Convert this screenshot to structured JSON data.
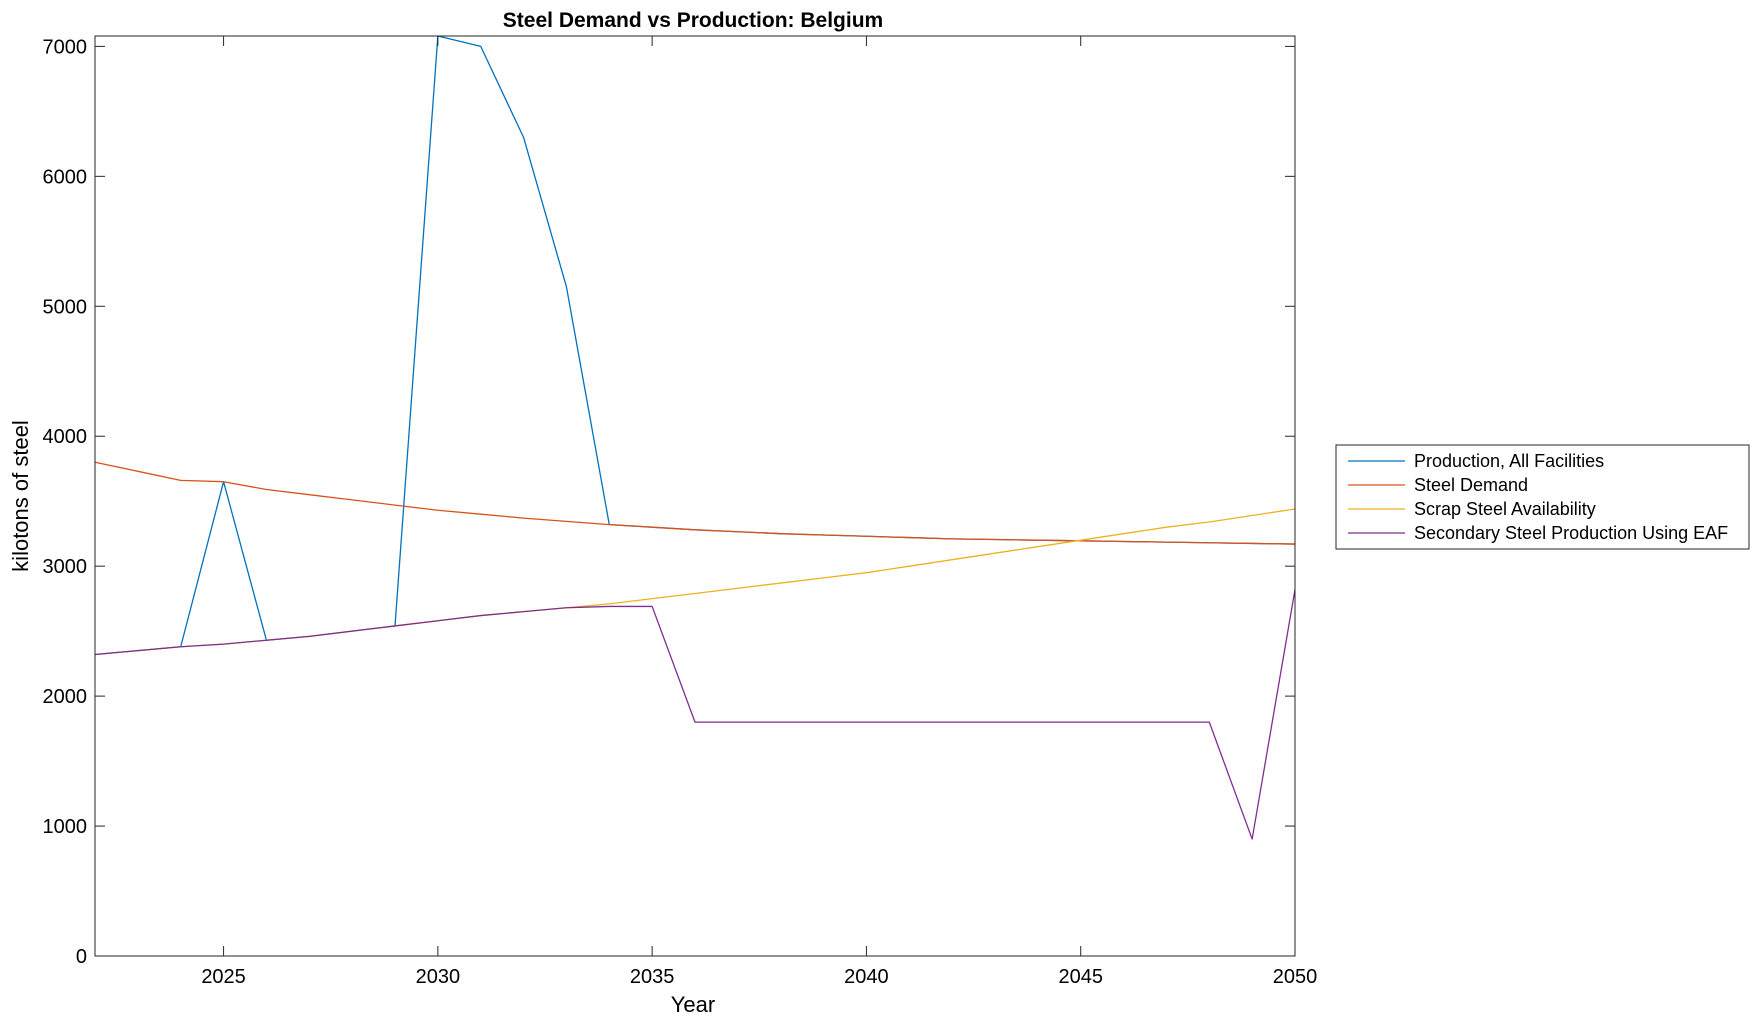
{
  "chart_data": {
    "type": "line",
    "title": "Steel Demand vs Production: Belgium",
    "xlabel": "Year",
    "ylabel": "kilotons of steel",
    "xlim": [
      2022,
      2050
    ],
    "ylim": [
      0,
      7080
    ],
    "xticks": [
      2025,
      2030,
      2035,
      2040,
      2045,
      2050
    ],
    "yticks": [
      0,
      1000,
      2000,
      3000,
      4000,
      5000,
      6000,
      7000
    ],
    "grid": false,
    "legend_position": "outside-right",
    "x": [
      2022,
      2023,
      2024,
      2025,
      2026,
      2027,
      2028,
      2029,
      2030,
      2031,
      2032,
      2033,
      2034,
      2035,
      2036,
      2037,
      2038,
      2039,
      2040,
      2041,
      2042,
      2043,
      2044,
      2045,
      2046,
      2047,
      2048,
      2049,
      2050
    ],
    "series": [
      {
        "name": "Production, All Facilities",
        "color": "#0072BD",
        "values": [
          2320,
          2350,
          2380,
          3650,
          2430,
          2460,
          2500,
          2540,
          7080,
          7000,
          6300,
          5150,
          3320,
          3300,
          3280,
          3265,
          3250,
          3240,
          3230,
          3220,
          3210,
          3205,
          3200,
          3195,
          3190,
          3185,
          3180,
          3175,
          3170
        ]
      },
      {
        "name": "Steel Demand",
        "color": "#D95319",
        "values": [
          3800,
          3730,
          3660,
          3650,
          3590,
          3550,
          3510,
          3470,
          3430,
          3400,
          3370,
          3345,
          3320,
          3300,
          3280,
          3265,
          3250,
          3240,
          3230,
          3220,
          3210,
          3205,
          3200,
          3195,
          3190,
          3185,
          3180,
          3175,
          3170
        ]
      },
      {
        "name": "Scrap Steel Availability",
        "color": "#EDB120",
        "values": [
          2320,
          2350,
          2380,
          2400,
          2430,
          2460,
          2500,
          2540,
          2580,
          2620,
          2650,
          2680,
          2710,
          2750,
          2790,
          2830,
          2870,
          2910,
          2950,
          3000,
          3050,
          3100,
          3150,
          3200,
          3250,
          3300,
          3340,
          3390,
          3440
        ]
      },
      {
        "name": "Secondary Steel Production Using EAF",
        "color": "#7E2F8E",
        "values": [
          2320,
          2350,
          2380,
          2400,
          2430,
          2460,
          2500,
          2540,
          2580,
          2620,
          2650,
          2680,
          2690,
          2690,
          1800,
          1800,
          1800,
          1800,
          1800,
          1800,
          1800,
          1800,
          1800,
          1800,
          1800,
          1800,
          1800,
          900,
          2820
        ]
      }
    ]
  }
}
